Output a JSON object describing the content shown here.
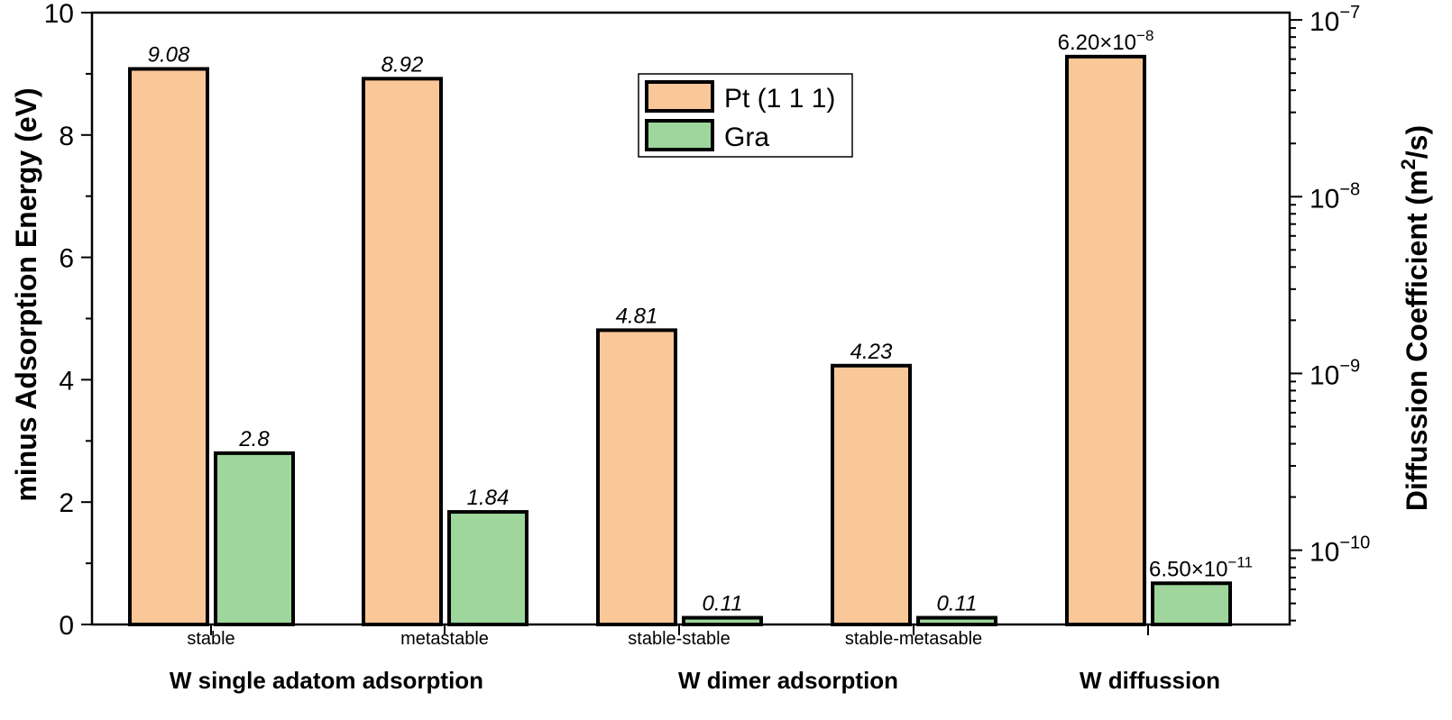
{
  "chart_data": {
    "type": "bar",
    "categories": [
      "stable",
      "metastable",
      "stable-stable",
      "stable-metasable",
      ""
    ],
    "groups": [
      {
        "label": "W single adatom adsorption",
        "categories": [
          0,
          1
        ]
      },
      {
        "label": "W dimer adsorption",
        "categories": [
          2,
          3
        ]
      },
      {
        "label": "W diffussion",
        "categories": [
          4
        ]
      }
    ],
    "series": [
      {
        "name": "Pt (1 1 1)",
        "color": "#FAC898",
        "values": [
          9.08,
          8.92,
          4.81,
          4.23,
          null
        ],
        "labels": [
          "9.08",
          "8.92",
          "4.81",
          "4.23",
          null
        ]
      },
      {
        "name": "Gra",
        "color": "#9ED69C",
        "values": [
          2.8,
          1.84,
          0.11,
          0.11,
          null
        ],
        "labels": [
          "2.8",
          "1.84",
          "0.11",
          "0.11",
          null
        ]
      }
    ],
    "right_axis_series": [
      {
        "name": "Pt (1 1 1)",
        "category": 4,
        "value": 6.2e-08,
        "label_mantissa": "6.20×10",
        "label_exp": "−8"
      },
      {
        "name": "Gra",
        "category": 4,
        "value": 6.5e-11,
        "label_mantissa": "6.50×10",
        "label_exp": "−11"
      }
    ],
    "ylabel": "minus Adsorption Energy (eV)",
    "ylim": [
      0,
      10
    ],
    "yticks": [
      "0",
      "2",
      "4",
      "6",
      "8",
      "10"
    ],
    "y2label_main": "Diffussion Coefficient (m",
    "y2label_sup": "2",
    "y2label_end": "/s)",
    "y2scale": "log",
    "y2lim": [
      3.8e-11,
      1.1e-07
    ],
    "y2ticks": [
      {
        "base": "10",
        "exp": "−7",
        "value": 1e-07
      },
      {
        "base": "10",
        "exp": "−8",
        "value": 1e-08
      },
      {
        "base": "10",
        "exp": "−9",
        "value": 1e-09
      },
      {
        "base": "10",
        "exp": "−10",
        "value": 1e-10
      }
    ],
    "legend_position": "top-center",
    "grid": false
  }
}
